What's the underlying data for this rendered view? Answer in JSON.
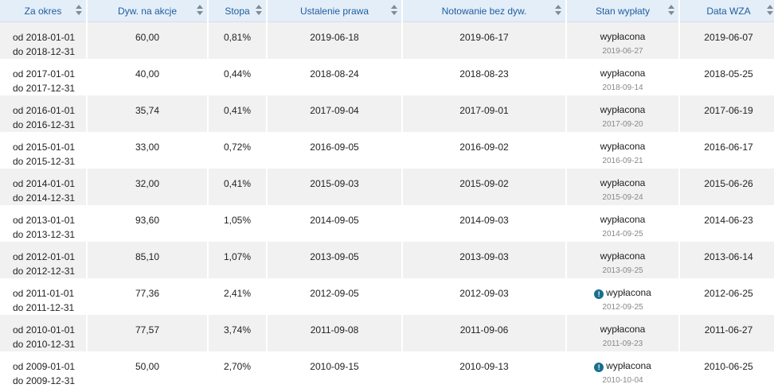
{
  "columns": [
    {
      "label": "Za okres"
    },
    {
      "label": "Dyw. na akcje"
    },
    {
      "label": "Stopa"
    },
    {
      "label": "Ustalenie prawa"
    },
    {
      "label": "Notowanie bez dyw."
    },
    {
      "label": "Stan wypłaty"
    },
    {
      "label": "Data WZA"
    }
  ],
  "rows": [
    {
      "from": "od 2018-01-01",
      "to": "do 2018-12-31",
      "dividend": "60,00",
      "rate": "0,81%",
      "record_date": "2019-06-18",
      "ex_date": "2019-06-17",
      "status": "wypłacona",
      "status_date": "2019-06-27",
      "warning": false,
      "agm_date": "2019-06-07"
    },
    {
      "from": "od 2017-01-01",
      "to": "do 2017-12-31",
      "dividend": "40,00",
      "rate": "0,44%",
      "record_date": "2018-08-24",
      "ex_date": "2018-08-23",
      "status": "wypłacona",
      "status_date": "2018-09-14",
      "warning": false,
      "agm_date": "2018-05-25"
    },
    {
      "from": "od 2016-01-01",
      "to": "do 2016-12-31",
      "dividend": "35,74",
      "rate": "0,41%",
      "record_date": "2017-09-04",
      "ex_date": "2017-09-01",
      "status": "wypłacona",
      "status_date": "2017-09-20",
      "warning": false,
      "agm_date": "2017-06-19"
    },
    {
      "from": "od 2015-01-01",
      "to": "do 2015-12-31",
      "dividend": "33,00",
      "rate": "0,72%",
      "record_date": "2016-09-05",
      "ex_date": "2016-09-02",
      "status": "wypłacona",
      "status_date": "2016-09-21",
      "warning": false,
      "agm_date": "2016-06-17"
    },
    {
      "from": "od 2014-01-01",
      "to": "do 2014-12-31",
      "dividend": "32,00",
      "rate": "0,41%",
      "record_date": "2015-09-03",
      "ex_date": "2015-09-02",
      "status": "wypłacona",
      "status_date": "2015-09-24",
      "warning": false,
      "agm_date": "2015-06-26"
    },
    {
      "from": "od 2013-01-01",
      "to": "do 2013-12-31",
      "dividend": "93,60",
      "rate": "1,05%",
      "record_date": "2014-09-05",
      "ex_date": "2014-09-03",
      "status": "wypłacona",
      "status_date": "2014-09-25",
      "warning": false,
      "agm_date": "2014-06-23"
    },
    {
      "from": "od 2012-01-01",
      "to": "do 2012-12-31",
      "dividend": "85,10",
      "rate": "1,07%",
      "record_date": "2013-09-05",
      "ex_date": "2013-09-03",
      "status": "wypłacona",
      "status_date": "2013-09-25",
      "warning": false,
      "agm_date": "2013-06-14"
    },
    {
      "from": "od 2011-01-01",
      "to": "do 2011-12-31",
      "dividend": "77,36",
      "rate": "2,41%",
      "record_date": "2012-09-05",
      "ex_date": "2012-09-03",
      "status": "wypłacona",
      "status_date": "2012-09-25",
      "warning": true,
      "agm_date": "2012-06-25"
    },
    {
      "from": "od 2010-01-01",
      "to": "do 2010-12-31",
      "dividend": "77,57",
      "rate": "3,74%",
      "record_date": "2011-09-08",
      "ex_date": "2011-09-06",
      "status": "wypłacona",
      "status_date": "2011-09-23",
      "warning": false,
      "agm_date": "2011-06-27"
    },
    {
      "from": "od 2009-01-01",
      "to": "do 2009-12-31",
      "dividend": "50,00",
      "rate": "2,70%",
      "record_date": "2010-09-15",
      "ex_date": "2010-09-13",
      "status": "wypłacona",
      "status_date": "2010-10-04",
      "warning": true,
      "agm_date": "2010-06-25"
    }
  ],
  "icons": {
    "sort": "sort-arrows-icon",
    "warning": "exclamation-icon"
  },
  "colors": {
    "header_bg": "#e4eef8",
    "header_text": "#1f5ea0",
    "stripe": "#f1f1f1",
    "warning_icon": "#1a6e8e"
  }
}
